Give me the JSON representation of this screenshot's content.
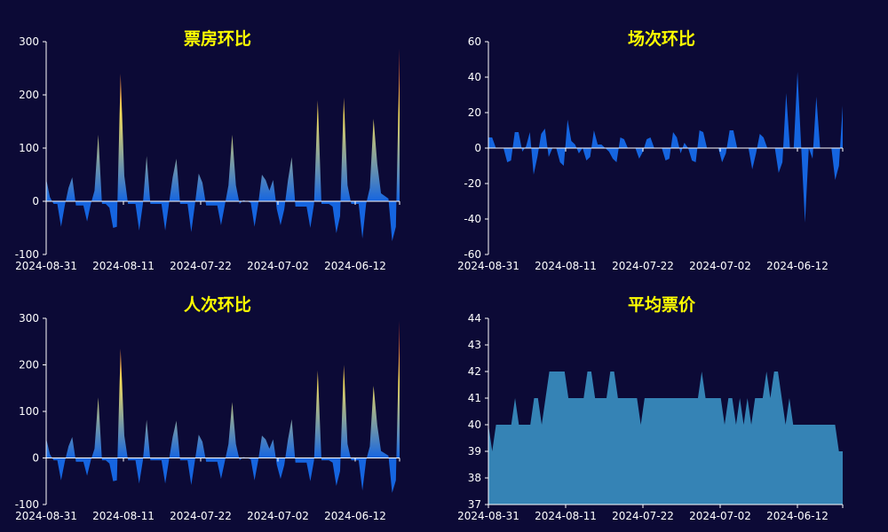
{
  "chart_data": [
    {
      "type": "area",
      "title": "票房环比",
      "x_tick_labels": [
        "2024-08-31",
        "2024-08-11",
        "2024-07-22",
        "2024-07-02",
        "2024-06-12"
      ],
      "y_tick_labels": [
        "-100",
        "0",
        "100",
        "200",
        "300"
      ],
      "ylim": [
        -100,
        300
      ],
      "grid": false,
      "fill": "gradient-by-value",
      "colors": {
        "low": "#1565e0",
        "mid": "#f5dd5a",
        "high": "#e3271f"
      },
      "values": [
        42,
        8,
        -5,
        -5,
        -48,
        -8,
        25,
        45,
        -8,
        -8,
        -8,
        -38,
        -5,
        20,
        125,
        -5,
        -5,
        -12,
        -50,
        -48,
        240,
        48,
        -5,
        -5,
        -5,
        -55,
        -5,
        85,
        -5,
        -5,
        -5,
        -5,
        -55,
        -5,
        45,
        80,
        -5,
        -5,
        -5,
        -58,
        -5,
        52,
        35,
        -8,
        -8,
        -8,
        -8,
        -45,
        -8,
        30,
        125,
        30,
        -5,
        2,
        0,
        -3,
        -48,
        -5,
        50,
        40,
        20,
        40,
        -15,
        -45,
        -15,
        40,
        83,
        -10,
        -10,
        -10,
        -10,
        -50,
        -5,
        190,
        -5,
        -5,
        -5,
        -10,
        -60,
        -28,
        195,
        30,
        -5,
        -5,
        -5,
        -70,
        -5,
        25,
        155,
        70,
        15,
        10,
        5,
        -75,
        -48,
        287
      ]
    },
    {
      "type": "area",
      "title": "场次环比",
      "x_tick_labels": [
        "2024-08-31",
        "2024-08-11",
        "2024-07-22",
        "2024-07-02",
        "2024-06-12"
      ],
      "y_tick_labels": [
        "-60",
        "-40",
        "-20",
        "0",
        "20",
        "40",
        "60"
      ],
      "ylim": [
        -60,
        60
      ],
      "grid": false,
      "fill": "#1565e0",
      "values": [
        6,
        6,
        0,
        0,
        0,
        -8,
        -7,
        9,
        9,
        -2,
        1,
        9,
        -15,
        -5,
        8,
        11,
        -5,
        0,
        0,
        -8,
        -10,
        16,
        4,
        2,
        -3,
        0,
        -7,
        -5,
        10,
        2,
        2,
        0,
        -2,
        -6,
        -8,
        6,
        5,
        0,
        0,
        0,
        -6,
        -2,
        5,
        6,
        0,
        0,
        0,
        -7,
        -6,
        9,
        6,
        -3,
        3,
        0,
        -7,
        -8,
        10,
        9,
        0,
        0,
        0,
        0,
        -8,
        -3,
        10,
        10,
        0,
        0,
        0,
        0,
        -12,
        -3,
        8,
        6,
        0,
        0,
        0,
        -14,
        -8,
        31,
        0,
        0,
        43,
        0,
        -42,
        0,
        -6,
        29,
        0,
        0,
        0,
        0,
        -18,
        -10,
        24
      ]
    },
    {
      "type": "area",
      "title": "人次环比",
      "x_tick_labels": [
        "2024-08-31",
        "2024-08-11",
        "2024-07-22",
        "2024-07-02",
        "2024-06-12"
      ],
      "y_tick_labels": [
        "-100",
        "0",
        "100",
        "200",
        "300"
      ],
      "ylim": [
        -100,
        300
      ],
      "grid": false,
      "fill": "gradient-by-value",
      "colors": {
        "low": "#1565e0",
        "mid": "#f5dd5a",
        "high": "#e3271f"
      },
      "values": [
        42,
        8,
        -5,
        -5,
        -48,
        -8,
        25,
        45,
        -8,
        -8,
        -8,
        -38,
        -5,
        20,
        130,
        -5,
        -5,
        -12,
        -50,
        -48,
        235,
        48,
        -5,
        -5,
        -5,
        -55,
        -5,
        82,
        -5,
        -5,
        -5,
        -5,
        -55,
        -5,
        45,
        80,
        -5,
        -5,
        -5,
        -58,
        -5,
        50,
        35,
        -8,
        -8,
        -8,
        -8,
        -45,
        -8,
        30,
        120,
        30,
        -5,
        2,
        0,
        -3,
        -48,
        -5,
        48,
        40,
        20,
        40,
        -15,
        -45,
        -15,
        40,
        83,
        -10,
        -10,
        -10,
        -10,
        -50,
        -5,
        188,
        -5,
        -5,
        -5,
        -10,
        -60,
        -28,
        200,
        30,
        -5,
        -5,
        -5,
        -70,
        -5,
        25,
        155,
        70,
        15,
        10,
        5,
        -75,
        -48,
        295
      ]
    },
    {
      "type": "area",
      "title": "平均票价",
      "x_tick_labels": [
        "2024-08-31",
        "2024-08-11",
        "2024-07-22",
        "2024-07-02",
        "2024-06-12"
      ],
      "y_tick_labels": [
        "37",
        "38",
        "39",
        "40",
        "41",
        "42",
        "43",
        "44"
      ],
      "ylim": [
        37,
        44
      ],
      "grid": false,
      "fill": "#3583b5",
      "values": [
        40,
        39,
        40,
        40,
        40,
        40,
        40,
        41,
        40,
        40,
        40,
        40,
        41,
        41,
        40,
        41,
        42,
        42,
        42,
        42,
        42,
        41,
        41,
        41,
        41,
        41,
        42,
        42,
        41,
        41,
        41,
        41,
        42,
        42,
        41,
        41,
        41,
        41,
        41,
        41,
        40,
        41,
        41,
        41,
        41,
        41,
        41,
        41,
        41,
        41,
        41,
        41,
        41,
        41,
        41,
        41,
        42,
        41,
        41,
        41,
        41,
        41,
        40,
        41,
        41,
        40,
        41,
        40,
        41,
        40,
        41,
        41,
        41,
        42,
        41,
        42,
        42,
        41,
        40,
        41,
        40,
        40,
        40,
        40,
        40,
        40,
        40,
        40,
        40,
        40,
        40,
        40,
        39,
        39
      ]
    }
  ]
}
